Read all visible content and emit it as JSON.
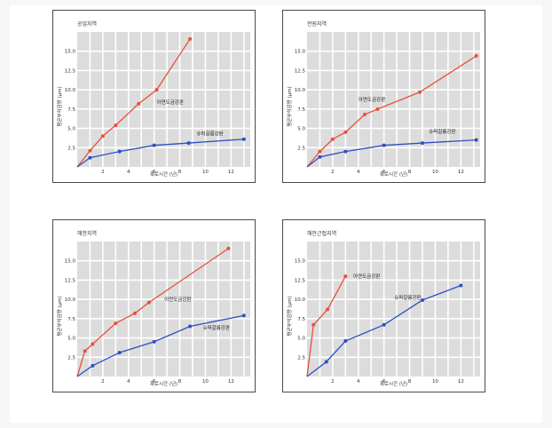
{
  "chart_data": [
    {
      "type": "line",
      "title": "공업지역",
      "xlabel": "폭로시간 (년)",
      "ylabel": "평균부식감량 (μm)",
      "xlim": [
        0,
        13.5
      ],
      "ylim": [
        0,
        17.5
      ],
      "xticks": [
        2,
        4,
        6,
        8,
        10,
        12
      ],
      "yticks": [
        2.5,
        5.0,
        7.5,
        10.0,
        12.5,
        15.0
      ],
      "grid": true,
      "series": [
        {
          "name": "아연도금강판",
          "color": "#e8503a",
          "label_at": [
            6.2,
            8.2
          ],
          "x": [
            0,
            1.0,
            2.0,
            3.0,
            4.8,
            6.2,
            8.8
          ],
          "y": [
            0,
            2.1,
            4.0,
            5.4,
            8.2,
            10.0,
            16.6
          ]
        },
        {
          "name": "슈퍼갈륨강판",
          "color": "#2c4fc0",
          "label_at": [
            9.3,
            4.1
          ],
          "x": [
            0,
            1.0,
            3.3,
            6.0,
            8.7,
            13.0
          ],
          "y": [
            0,
            1.2,
            2.0,
            2.8,
            3.1,
            3.6
          ]
        }
      ]
    },
    {
      "type": "line",
      "title": "전원지역",
      "xlabel": "폭로시간 (년)",
      "ylabel": "평균부식감량 (μm)",
      "xlim": [
        0,
        13.5
      ],
      "ylim": [
        0,
        17.5
      ],
      "xticks": [
        2,
        4,
        6,
        8,
        10,
        12
      ],
      "yticks": [
        2.5,
        5.0,
        7.5,
        10.0,
        12.5,
        15.0
      ],
      "grid": true,
      "series": [
        {
          "name": "아연도금강판",
          "color": "#e8503a",
          "label_at": [
            4.0,
            8.5
          ],
          "x": [
            0,
            1.0,
            2.0,
            3.0,
            4.5,
            5.5,
            8.8,
            13.2
          ],
          "y": [
            0,
            2.0,
            3.6,
            4.5,
            6.8,
            7.5,
            9.7,
            14.4
          ]
        },
        {
          "name": "슈퍼갈륨강판",
          "color": "#2c4fc0",
          "label_at": [
            9.5,
            4.4
          ],
          "x": [
            0,
            1.0,
            3.0,
            6.0,
            9.0,
            13.2
          ],
          "y": [
            0,
            1.3,
            2.0,
            2.8,
            3.1,
            3.5
          ]
        }
      ]
    },
    {
      "type": "line",
      "title": "해안지역",
      "xlabel": "폭로시간 (년)",
      "ylabel": "평균부식감량 (μm)",
      "xlim": [
        0,
        13.5
      ],
      "ylim": [
        0,
        17.5
      ],
      "xticks": [
        2,
        4,
        6,
        8,
        10,
        12
      ],
      "yticks": [
        2.5,
        5.0,
        7.5,
        10.0,
        12.5,
        15.0
      ],
      "grid": true,
      "series": [
        {
          "name": "아연도금강판",
          "color": "#e8503a",
          "label_at": [
            6.8,
            9.8
          ],
          "x": [
            0,
            0.6,
            1.2,
            3.0,
            4.5,
            5.6,
            11.8
          ],
          "y": [
            0,
            3.3,
            4.2,
            6.9,
            8.2,
            9.6,
            16.6
          ]
        },
        {
          "name": "슈퍼갈륨강판",
          "color": "#2c4fc0",
          "label_at": [
            9.8,
            6.1
          ],
          "x": [
            0,
            1.2,
            3.3,
            6.0,
            8.8,
            13.0
          ],
          "y": [
            0,
            1.4,
            3.1,
            4.5,
            6.5,
            7.9
          ]
        }
      ]
    },
    {
      "type": "line",
      "title": "해안근접지역",
      "xlabel": "폭로시간 (년)",
      "ylabel": "평균부식감량 (μm)",
      "xlim": [
        0,
        13.5
      ],
      "ylim": [
        0,
        17.5
      ],
      "xticks": [
        2,
        4,
        6,
        8,
        10,
        12
      ],
      "yticks": [
        2.5,
        5.0,
        7.5,
        10.0,
        12.5,
        15.0
      ],
      "grid": true,
      "series": [
        {
          "name": "아연도금강판",
          "color": "#e8503a",
          "label_at": [
            3.6,
            12.8
          ],
          "x": [
            0,
            0.5,
            1.6,
            3.0
          ],
          "y": [
            0,
            6.7,
            8.7,
            13.0
          ]
        },
        {
          "name": "슈퍼갈륨강판",
          "color": "#2c4fc0",
          "label_at": [
            6.8,
            10.0
          ],
          "x": [
            0,
            1.5,
            3.0,
            6.0,
            9.0,
            12.0
          ],
          "y": [
            0,
            1.9,
            4.6,
            6.7,
            9.9,
            11.8
          ]
        }
      ]
    }
  ]
}
